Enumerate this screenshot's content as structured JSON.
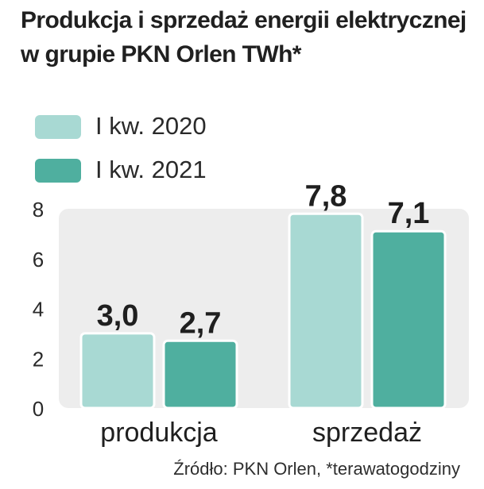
{
  "colors": {
    "series_2020": "#a8d9d3",
    "series_2021": "#4faf9f",
    "bar_edge": "#ffffff",
    "plot_bg": "#ededed",
    "text": "#1f1f1f"
  },
  "chart_data": {
    "type": "bar",
    "title": "Produkcja i sprzedaż energii elektrycznej w grupie PKN Orlen TWh*",
    "xlabel": "",
    "ylabel": "",
    "categories": [
      "produkcja",
      "sprzedaż"
    ],
    "series": [
      {
        "name": "I kw. 2020",
        "values": [
          3.0,
          7.8
        ],
        "labels": [
          "3,0",
          "7,8"
        ]
      },
      {
        "name": "I kw. 2021",
        "values": [
          2.7,
          7.1
        ],
        "labels": [
          "2,7",
          "7,1"
        ]
      }
    ],
    "ylim": [
      0,
      8
    ],
    "yticks": [
      0,
      2,
      4,
      6,
      8
    ],
    "ytick_labels": [
      "0",
      "2",
      "4",
      "6",
      "8"
    ],
    "legend_position": "top-left",
    "grid": false
  },
  "source": "Źródło: PKN Orlen, *terawatogodziny"
}
